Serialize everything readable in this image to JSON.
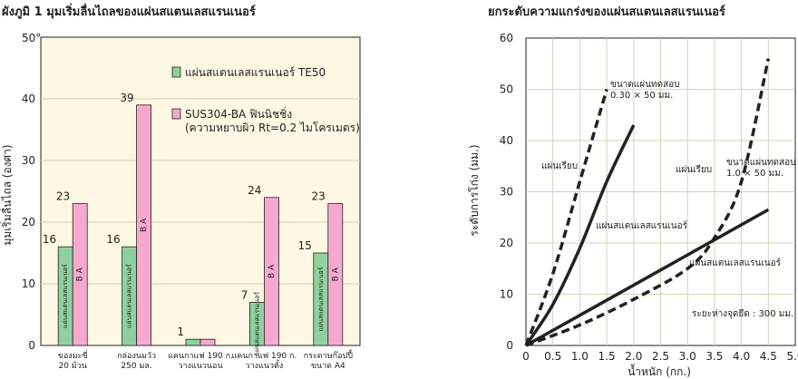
{
  "left_chart": {
    "title": "ผังภูมิ 1 มุมเริ่มลื่นไถลของแผ่นสแตนเลสแรนเนอร์",
    "ylabel": "มุมเริ่มลื่นไถล (องศา)",
    "y_top_label": "50°",
    "legend": {
      "green": "แผ่นสแตนเลสแรนเนอร์ TE50",
      "pink_line1": "SUS304-BA ฟินนิชชิ่ง",
      "pink_line2": "(ความหยาบผิว Rt=0.2 ไมโครเมตร)"
    },
    "bar_label_green": "แผ่นสแตนเลสแรนเนอร์",
    "bar_label_pink": "B A"
  },
  "right_chart": {
    "title": "ยกระดับความแกร่งของแผ่นสแตนเลสแรนเนอร์",
    "ylabel": "ระดับการโก่ง (มม.)",
    "xlabel": "น้ำหนัก (กก.)",
    "annotations": {
      "size1_line1": "ขนาดแผ่นทดสอบ",
      "size1_line2": "0.30 × 50 มม.",
      "flat1": "แผ่นเรียบ",
      "runner1": "แผ่นสแตนเลสแรนเนอร์",
      "flat2": "แผ่นเรียบ",
      "size2_line1": "ขนาดแผ่นทดสอบ",
      "size2_line2": "1.0 × 50 มม.",
      "runner2": "แผ่นสแตนเลสแรนเนอร์",
      "distance": "ระยะห่างจุดยึด : 300 มม."
    }
  },
  "colors": {
    "green": "#8fd19e",
    "pink": "#f7a8cf",
    "panel": "#fdf7e3",
    "grid": "#d8d0b8",
    "stroke": "#222222"
  },
  "chart_data": [
    {
      "type": "bar",
      "title": "ผังภูมิ 1 มุมเริ่มลื่นไถลของแผ่นสแตนเลสแรนเนอร์",
      "ylabel": "มุมเริ่มลื่นไถล (องศา)",
      "ylim": [
        0,
        50
      ],
      "yticks": [
        0,
        10,
        20,
        30,
        40
      ],
      "grid": true,
      "legend": "top-right",
      "categories": [
        [
          "ของมะขี่",
          "20 ม้วน"
        ],
        [
          "กล่องนมวัว",
          "250 มล."
        ],
        [
          "แคนกาแฟ 190 ก.",
          "วางแนวนอน"
        ],
        [
          "แคนกาแฟ 190 ก.",
          "วางแนวตั้ง"
        ],
        [
          "กระดาษก๊อปปี้",
          "ขนาด A4"
        ]
      ],
      "series": [
        {
          "name": "แผ่นสแตนเลสแรนเนอร์ TE50",
          "values": [
            16,
            16,
            1,
            7,
            15
          ]
        },
        {
          "name": "SUS304-BA ฟินนิชชิ่ง (ความหยาบผิว Rt=0.2 ไมโครเมตร)",
          "values": [
            23,
            39,
            1,
            24,
            23
          ]
        }
      ],
      "value_labels": [
        "16",
        "23",
        "16",
        "39",
        "1",
        "",
        "7",
        "24",
        "15",
        "23"
      ]
    },
    {
      "type": "line",
      "title": "ยกระดับความแกร่งของแผ่นสแตนเลสแรนเนอร์",
      "xlabel": "น้ำหนัก (กก.)",
      "ylabel": "ระดับการโก่ง (มม.)",
      "xlim": [
        0,
        5.0
      ],
      "ylim": [
        0,
        60
      ],
      "xticks": [
        "0",
        "0.5",
        "1.0",
        "1.5",
        "2.0",
        "2.5",
        "3.0",
        "3.5",
        "4.0",
        "4.5",
        "5.0"
      ],
      "yticks": [
        "0",
        "10",
        "20",
        "30",
        "40",
        "50",
        "60"
      ],
      "grid": true,
      "series": [
        {
          "style": "dashed",
          "x": [
            0,
            0.5,
            1.0,
            1.5
          ],
          "y": [
            0,
            14,
            32,
            50
          ]
        },
        {
          "style": "solid",
          "x": [
            0,
            0.5,
            1.0,
            1.5,
            2.0
          ],
          "y": [
            0,
            8,
            19,
            32,
            43
          ]
        },
        {
          "style": "dashed",
          "x": [
            0,
            1.0,
            2.0,
            3.0,
            3.5,
            4.0,
            4.5
          ],
          "y": [
            0,
            4,
            9,
            15,
            21,
            32,
            56
          ]
        },
        {
          "style": "solid",
          "x": [
            0,
            4.5
          ],
          "y": [
            0,
            26.5
          ]
        }
      ]
    }
  ]
}
